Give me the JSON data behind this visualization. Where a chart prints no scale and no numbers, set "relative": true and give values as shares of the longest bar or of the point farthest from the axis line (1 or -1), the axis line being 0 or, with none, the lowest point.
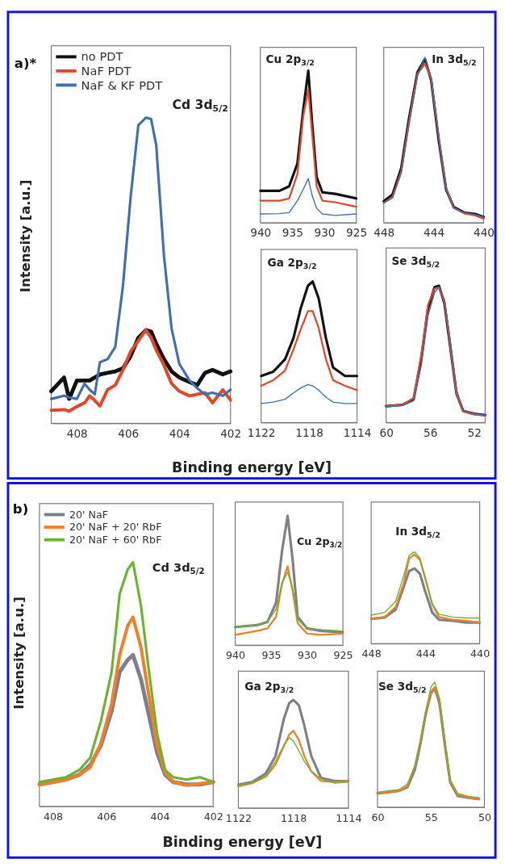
{
  "chart_data": [
    {
      "type": "line",
      "title": "Cd 3d$_{5/2}$",
      "ylabel": "Intensity [a.u.]",
      "annotations": [
        "a)*"
      ],
      "relative": true,
      "legend": "top left",
      "xlim": [
        409,
        402
      ],
      "xticks": [
        408,
        406,
        404,
        402
      ],
      "x": [
        409,
        408.5,
        408.3,
        408,
        407.7,
        407.5,
        407.3,
        407.1,
        406.8,
        406.5,
        406.2,
        405.9,
        405.6,
        405.3,
        405.1,
        404.9,
        404.6,
        404.3,
        404,
        403.6,
        403.3,
        403,
        402.7,
        402.3,
        402
      ],
      "series": [
        {
          "name": "no PDT",
          "color": "#111111",
          "values": [
            0.105,
            0.15,
            0.08,
            0.14,
            0.14,
            0.14,
            0.15,
            0.16,
            0.165,
            0.17,
            0.18,
            0.22,
            0.28,
            0.305,
            0.3,
            0.26,
            0.21,
            0.17,
            0.15,
            0.135,
            0.125,
            0.165,
            0.175,
            0.16,
            0.17
          ]
        },
        {
          "name": "NaF PDT",
          "color": "#e0482a",
          "values": [
            0.043,
            0.045,
            0.04,
            0.055,
            0.067,
            0.09,
            0.075,
            0.057,
            0.11,
            0.125,
            0.175,
            0.235,
            0.27,
            0.305,
            0.28,
            0.24,
            0.19,
            0.13,
            0.105,
            0.09,
            0.095,
            0.1,
            0.067,
            0.11,
            0.076
          ]
        },
        {
          "name": "NaF & KF PDT",
          "color": "#3f6fb0",
          "values": [
            0.08,
            0.09,
            0.085,
            0.08,
            0.13,
            0.11,
            0.095,
            0.2,
            0.21,
            0.25,
            0.45,
            0.74,
            0.975,
            1,
            0.995,
            0.91,
            0.55,
            0.31,
            0.195,
            0.14,
            0.115,
            0.095,
            0.1,
            0.09,
            0.11
          ]
        }
      ]
    },
    {
      "type": "line",
      "title": "Cu 2p$_{3/2}$",
      "relative": true,
      "xlim": [
        940,
        925
      ],
      "xticks": [
        940,
        935,
        930,
        925
      ],
      "x": [
        940,
        937,
        935.5,
        934.2,
        933.3,
        932.5,
        931.9,
        931.2,
        930.3,
        928.3,
        925
      ],
      "series": [
        {
          "color": "#111111",
          "values": [
            0.21,
            0.21,
            0.24,
            0.39,
            0.74,
            1,
            0.65,
            0.3,
            0.2,
            0.19,
            0.16
          ]
        },
        {
          "color": "#e0482a",
          "values": [
            0.145,
            0.145,
            0.16,
            0.32,
            0.7,
            0.875,
            0.59,
            0.24,
            0.145,
            0.135,
            0.105
          ]
        },
        {
          "color": "#3f6fb0",
          "values": [
            0.058,
            0.06,
            0.067,
            0.145,
            0.22,
            0.29,
            0.18,
            0.096,
            0.058,
            0.048,
            0.058
          ]
        }
      ]
    },
    {
      "type": "line",
      "title": "In 3d$_{5/2}$",
      "relative": true,
      "xlim": [
        448,
        440
      ],
      "xticks": [
        448,
        444,
        440
      ],
      "x": [
        448,
        447.3,
        446.6,
        446,
        445.3,
        444.7,
        444.2,
        443.6,
        443,
        442.4,
        441.5,
        440.7,
        440
      ],
      "series": [
        {
          "color": "#111111",
          "values": [
            0.13,
            0.17,
            0.33,
            0.62,
            0.91,
            0.99,
            0.86,
            0.5,
            0.2,
            0.095,
            0.06,
            0.053,
            0.035
          ]
        },
        {
          "color": "#e0482a",
          "values": [
            0.12,
            0.155,
            0.31,
            0.6,
            0.9,
            0.96,
            0.87,
            0.52,
            0.21,
            0.09,
            0.055,
            0.045,
            0.025
          ]
        },
        {
          "color": "#3f6fb0",
          "values": [
            0.12,
            0.15,
            0.3,
            0.58,
            0.89,
            1,
            0.88,
            0.52,
            0.2,
            0.09,
            0.06,
            0.05,
            0.035
          ]
        }
      ]
    },
    {
      "type": "line",
      "title": "Ga 2p$_{3/2}$",
      "xlabel": "Binding energy [eV]",
      "relative": true,
      "xlim": [
        1122,
        1114
      ],
      "xticks": [
        1122,
        1118,
        1114
      ],
      "x": [
        1122,
        1121,
        1120,
        1119.3,
        1118.7,
        1118.1,
        1117.7,
        1117.2,
        1116.6,
        1116,
        1115,
        1114
      ],
      "series": [
        {
          "color": "#111111",
          "values": [
            0.33,
            0.36,
            0.45,
            0.6,
            0.81,
            0.97,
            1,
            0.88,
            0.6,
            0.39,
            0.33,
            0.33
          ]
        },
        {
          "color": "#e0482a",
          "values": [
            0.26,
            0.3,
            0.37,
            0.52,
            0.66,
            0.79,
            0.79,
            0.67,
            0.45,
            0.3,
            0.26,
            0.23
          ]
        },
        {
          "color": "#3f6fb0",
          "values": [
            0.135,
            0.145,
            0.165,
            0.21,
            0.245,
            0.27,
            0.26,
            0.23,
            0.18,
            0.145,
            0.135,
            0.135
          ]
        }
      ]
    },
    {
      "type": "line",
      "title": "Se 3d$_{5/2}$",
      "relative": true,
      "xlim": [
        60,
        51
      ],
      "xticks": [
        60,
        56,
        52
      ],
      "x": [
        60,
        58.5,
        57.5,
        56.8,
        56.2,
        55.6,
        55.2,
        54.7,
        54.2,
        53.6,
        53,
        52,
        51
      ],
      "series": [
        {
          "color": "#111111",
          "values": [
            0.12,
            0.13,
            0.17,
            0.47,
            0.83,
            0.99,
            1,
            0.87,
            0.57,
            0.21,
            0.085,
            0.064,
            0.054
          ]
        },
        {
          "color": "#e0482a",
          "values": [
            0.12,
            0.13,
            0.18,
            0.5,
            0.86,
            0.98,
            0.99,
            0.88,
            0.58,
            0.21,
            0.08,
            0.06,
            0.05
          ]
        },
        {
          "color": "#3f6fb0",
          "values": [
            0.115,
            0.125,
            0.16,
            0.42,
            0.78,
            0.95,
            0.99,
            0.9,
            0.62,
            0.24,
            0.09,
            0.065,
            0.055
          ]
        }
      ]
    },
    {
      "type": "line",
      "title": "Cd 3d$_{5/2}$",
      "ylabel": "Intensity [a.u.]",
      "annotations": [
        "b)"
      ],
      "relative": true,
      "legend": "top left",
      "xlim": [
        408.5,
        402
      ],
      "xticks": [
        408,
        406,
        404,
        402
      ],
      "x": [
        408.5,
        408,
        407.5,
        407,
        406.6,
        406.2,
        405.8,
        405.5,
        405.2,
        405,
        404.7,
        404.4,
        404.1,
        403.8,
        403.5,
        403,
        402.5,
        402
      ],
      "series": [
        {
          "name": "20' NaF",
          "color": "#7f7f8a",
          "values": [
            0.09,
            0.1,
            0.11,
            0.13,
            0.17,
            0.25,
            0.39,
            0.55,
            0.6,
            0.62,
            0.52,
            0.37,
            0.22,
            0.13,
            0.1,
            0.09,
            0.09,
            0.1
          ]
        },
        {
          "name": "20' NaF + 20' RbF",
          "color": "#f07f2a",
          "values": [
            0.09,
            0.1,
            0.11,
            0.13,
            0.16,
            0.26,
            0.42,
            0.62,
            0.74,
            0.775,
            0.65,
            0.45,
            0.25,
            0.14,
            0.1,
            0.087,
            0.093,
            0.1
          ]
        },
        {
          "name": "20' NaF + 60' RbF",
          "color": "#6ab42f",
          "values": [
            0.1,
            0.11,
            0.12,
            0.15,
            0.2,
            0.35,
            0.55,
            0.87,
            0.97,
            1,
            0.82,
            0.55,
            0.3,
            0.15,
            0.12,
            0.11,
            0.12,
            0.1
          ]
        }
      ]
    },
    {
      "type": "line",
      "title": "Cu 2p$_{3/2}$",
      "relative": true,
      "xlim": [
        940,
        925
      ],
      "xticks": [
        940,
        935,
        930,
        925
      ],
      "x": [
        940,
        937,
        935.5,
        934.3,
        933.5,
        932.7,
        932,
        931.3,
        930,
        928,
        925
      ],
      "series": [
        {
          "color": "#7f7f8a",
          "values": [
            0.14,
            0.155,
            0.18,
            0.33,
            0.72,
            1,
            0.66,
            0.22,
            0.13,
            0.11,
            0.1
          ]
        },
        {
          "color": "#f07f2a",
          "values": [
            0.08,
            0.11,
            0.13,
            0.22,
            0.47,
            0.61,
            0.42,
            0.17,
            0.09,
            0.08,
            0.09
          ]
        },
        {
          "color": "#6ab42f",
          "values": [
            0.14,
            0.155,
            0.18,
            0.28,
            0.48,
            0.565,
            0.44,
            0.2,
            0.13,
            0.12,
            0.11
          ]
        }
      ]
    },
    {
      "type": "line",
      "title": "In 3d$_{5/2}$",
      "relative": true,
      "xlim": [
        448,
        440
      ],
      "xticks": [
        448,
        444,
        440
      ],
      "x": [
        448,
        447,
        446.2,
        445.6,
        445.2,
        444.8,
        444.4,
        444,
        443.5,
        443,
        442,
        441,
        440
      ],
      "series": [
        {
          "color": "#7f7f8a",
          "values": [
            0.27,
            0.285,
            0.37,
            0.62,
            0.79,
            0.82,
            0.76,
            0.56,
            0.34,
            0.26,
            0.25,
            0.23,
            0.23
          ]
        },
        {
          "color": "#f07f2a",
          "values": [
            0.27,
            0.29,
            0.4,
            0.66,
            0.93,
            0.97,
            0.91,
            0.71,
            0.43,
            0.29,
            0.26,
            0.25,
            0.23
          ]
        },
        {
          "color": "#6ab42f",
          "values": [
            0.31,
            0.34,
            0.46,
            0.74,
            0.96,
            1,
            0.93,
            0.69,
            0.43,
            0.32,
            0.29,
            0.28,
            0.28
          ]
        }
      ]
    },
    {
      "type": "line",
      "title": "Ga 2p$_{3/2}$",
      "xlabel": "Binding energy [eV]",
      "relative": true,
      "xlim": [
        1122,
        1114
      ],
      "xticks": [
        1122,
        1118,
        1114
      ],
      "x": [
        1122,
        1121,
        1120,
        1119.3,
        1118.7,
        1118.3,
        1118,
        1117.6,
        1117.2,
        1116.7,
        1116,
        1115,
        1114
      ],
      "series": [
        {
          "color": "#7f7f8a",
          "values": [
            0.215,
            0.24,
            0.32,
            0.48,
            0.82,
            0.97,
            1,
            0.95,
            0.76,
            0.48,
            0.28,
            0.25,
            0.25
          ]
        },
        {
          "color": "#f07f2a",
          "values": [
            0.2,
            0.23,
            0.29,
            0.4,
            0.57,
            0.68,
            0.715,
            0.63,
            0.48,
            0.34,
            0.25,
            0.24,
            0.25
          ]
        },
        {
          "color": "#6ab42f",
          "values": [
            0.215,
            0.23,
            0.3,
            0.43,
            0.58,
            0.65,
            0.62,
            0.53,
            0.43,
            0.34,
            0.27,
            0.23,
            0.24
          ]
        }
      ]
    },
    {
      "type": "line",
      "title": "Se 3d$_{5/2}$",
      "relative": true,
      "xlim": [
        60,
        50
      ],
      "xticks": [
        60,
        55,
        50
      ],
      "x": [
        60,
        59,
        58,
        57.2,
        56.5,
        56,
        55.5,
        55,
        54.65,
        54.2,
        53.7,
        53.2,
        52.5,
        51.5,
        50.5
      ],
      "series": [
        {
          "color": "#7f7f8a",
          "values": [
            0.11,
            0.12,
            0.13,
            0.16,
            0.3,
            0.5,
            0.74,
            0.91,
            0.95,
            0.83,
            0.5,
            0.2,
            0.09,
            0.076,
            0.065
          ]
        },
        {
          "color": "#f07f2a",
          "values": [
            0.11,
            0.12,
            0.13,
            0.17,
            0.33,
            0.52,
            0.75,
            0.92,
            0.96,
            0.85,
            0.52,
            0.21,
            0.1,
            0.076,
            0.065
          ]
        },
        {
          "color": "#6ab42f",
          "values": [
            0.12,
            0.13,
            0.14,
            0.185,
            0.33,
            0.52,
            0.76,
            0.96,
            1,
            0.87,
            0.54,
            0.22,
            0.11,
            0.087,
            0.076
          ]
        }
      ]
    }
  ]
}
